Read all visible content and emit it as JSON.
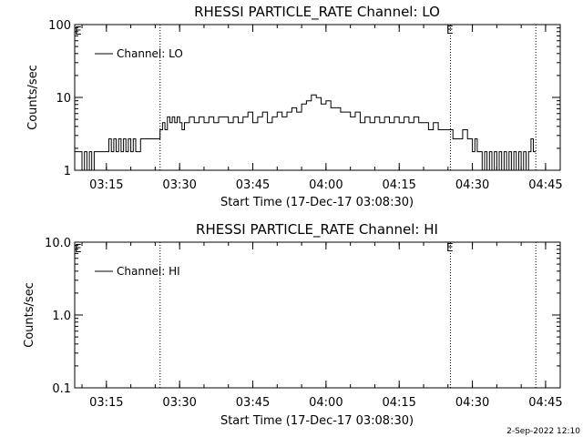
{
  "footer": {
    "timestamp": "2-Sep-2022 12:10"
  },
  "chart_data": [
    {
      "type": "line",
      "title": "RHESSI PARTICLE_RATE Channel: LO",
      "xlabel": "Start Time (17-Dec-17 03:08:30)",
      "ylabel": "Counts/sec",
      "yscale": "log",
      "xlim": [
        "03:08:30",
        "04:48:00"
      ],
      "ylim": [
        1,
        100
      ],
      "x_tick_labels": [
        "03:15",
        "03:30",
        "03:45",
        "04:00",
        "04:15",
        "04:30",
        "04:45"
      ],
      "y_tick_labels": [
        "1",
        "10",
        "100"
      ],
      "legend": {
        "entries": [
          "Channel: LO"
        ],
        "placement": "top-left"
      },
      "markers": [
        {
          "time": "03:26:00",
          "label": ""
        },
        {
          "time": "04:25:30",
          "label": "E"
        },
        {
          "time": "04:43:00",
          "label": ""
        }
      ],
      "corner_label": "E",
      "series": [
        {
          "name": "Channel: LO",
          "x": [
            "03:08:30",
            "03:09:30",
            "03:10:00",
            "03:10:30",
            "03:11:00",
            "03:11:30",
            "03:12:00",
            "03:12:30",
            "03:13:00",
            "03:13:30",
            "03:14:00",
            "03:14:30",
            "03:15:00",
            "03:15:30",
            "03:16:00",
            "03:16:30",
            "03:17:00",
            "03:17:30",
            "03:18:00",
            "03:18:30",
            "03:19:00",
            "03:19:30",
            "03:20:00",
            "03:20:30",
            "03:21:00",
            "03:22:00",
            "03:23:00",
            "03:24:00",
            "03:25:00",
            "03:26:00",
            "03:26:00",
            "03:26:30",
            "03:27:00",
            "03:27:30",
            "03:28:00",
            "03:28:30",
            "03:29:00",
            "03:29:30",
            "03:30:00",
            "03:30:30",
            "03:31:00",
            "03:32:00",
            "03:33:00",
            "03:34:00",
            "03:35:00",
            "03:36:00",
            "03:37:00",
            "03:38:00",
            "03:39:00",
            "03:40:00",
            "03:41:00",
            "03:42:00",
            "03:43:00",
            "03:44:00",
            "03:45:00",
            "03:46:00",
            "03:47:00",
            "03:48:00",
            "03:49:00",
            "03:50:00",
            "03:51:00",
            "03:52:00",
            "03:53:00",
            "03:54:00",
            "03:55:00",
            "03:56:00",
            "03:57:00",
            "03:58:00",
            "03:59:00",
            "04:00:00",
            "04:01:00",
            "04:02:00",
            "04:03:00",
            "04:04:00",
            "04:05:00",
            "04:06:00",
            "04:07:00",
            "04:08:00",
            "04:09:00",
            "04:10:00",
            "04:11:00",
            "04:12:00",
            "04:13:00",
            "04:14:00",
            "04:15:00",
            "04:16:00",
            "04:17:00",
            "04:18:00",
            "04:19:00",
            "04:20:00",
            "04:21:00",
            "04:22:00",
            "04:23:00",
            "04:24:00",
            "04:25:00",
            "04:26:00",
            "04:27:00",
            "04:28:00",
            "04:29:00",
            "04:29:30",
            "04:30:00",
            "04:30:30",
            "04:31:00",
            "04:31:30",
            "04:32:00",
            "04:32:30",
            "04:33:00",
            "04:33:30",
            "04:34:00",
            "04:34:30",
            "04:35:00",
            "04:35:30",
            "04:36:00",
            "04:36:30",
            "04:37:00",
            "04:37:30",
            "04:38:00",
            "04:38:30",
            "04:39:00",
            "04:39:30",
            "04:40:00",
            "04:40:30",
            "04:41:00",
            "04:41:30",
            "04:42:00",
            "04:42:30",
            "04:43:00"
          ],
          "y": [
            1.8,
            1.8,
            1.0,
            1.8,
            1.0,
            1.8,
            1.0,
            1.8,
            1.8,
            1.8,
            1.8,
            1.8,
            1.8,
            2.7,
            1.8,
            2.7,
            1.8,
            2.7,
            1.8,
            2.7,
            1.8,
            2.7,
            1.8,
            2.7,
            1.8,
            2.7,
            2.7,
            2.7,
            2.7,
            2.7,
            3.6,
            4.5,
            3.6,
            5.4,
            4.5,
            5.4,
            4.5,
            5.4,
            4.5,
            3.6,
            4.5,
            5.4,
            4.5,
            5.4,
            4.5,
            5.4,
            4.5,
            5.4,
            5.4,
            4.5,
            5.4,
            4.5,
            5.4,
            6.3,
            4.5,
            5.4,
            6.3,
            4.5,
            5.4,
            6.3,
            5.4,
            6.3,
            7.2,
            6.3,
            8.1,
            9.0,
            10.8,
            9.9,
            8.1,
            9.0,
            7.2,
            7.2,
            6.3,
            6.3,
            5.4,
            6.3,
            4.5,
            5.4,
            4.5,
            5.4,
            4.5,
            5.4,
            4.5,
            5.4,
            4.5,
            5.4,
            4.5,
            5.4,
            4.5,
            4.5,
            3.6,
            4.5,
            3.6,
            3.6,
            3.6,
            2.7,
            2.7,
            3.6,
            2.7,
            2.7,
            1.8,
            2.7,
            1.8,
            1.8,
            1.0,
            1.8,
            1.0,
            1.8,
            1.0,
            1.8,
            1.0,
            1.8,
            1.0,
            1.8,
            1.0,
            1.8,
            1.0,
            1.8,
            1.0,
            1.8,
            1.0,
            1.8,
            1.0,
            1.8,
            2.7,
            1.8,
            1.8
          ]
        }
      ]
    },
    {
      "type": "line",
      "title": "RHESSI PARTICLE_RATE Channel: HI",
      "xlabel": "Start Time (17-Dec-17 03:08:30)",
      "ylabel": "Counts/sec",
      "yscale": "log",
      "xlim": [
        "03:08:30",
        "04:48:00"
      ],
      "ylim": [
        0.1,
        10.0
      ],
      "x_tick_labels": [
        "03:15",
        "03:30",
        "03:45",
        "04:00",
        "04:15",
        "04:30",
        "04:45"
      ],
      "y_tick_labels": [
        "0.1",
        "1.0",
        "10.0"
      ],
      "legend": {
        "entries": [
          "Channel: HI"
        ],
        "placement": "top-left"
      },
      "markers": [
        {
          "time": "03:26:00",
          "label": ""
        },
        {
          "time": "04:25:30",
          "label": "E"
        },
        {
          "time": "04:43:00",
          "label": ""
        }
      ],
      "corner_label": "E",
      "series": [
        {
          "name": "Channel: HI",
          "x": [],
          "y": []
        }
      ]
    }
  ]
}
